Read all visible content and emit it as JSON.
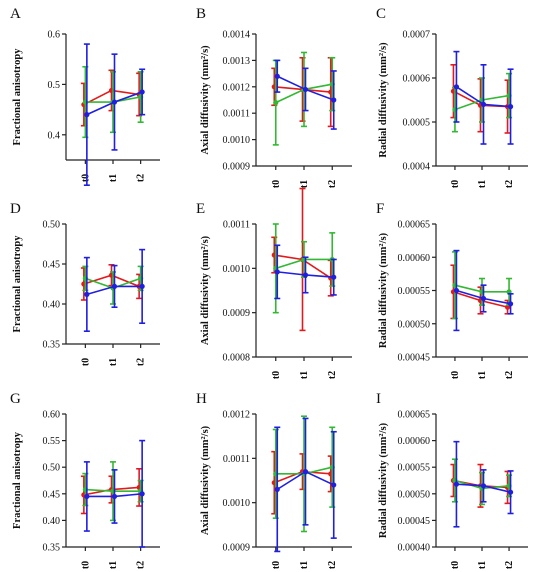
{
  "colors": {
    "red": "#e31a1c",
    "green": "#33b833",
    "blue": "#1f1fe0"
  },
  "chart_data": [
    {
      "panel": "A",
      "type": "line",
      "ylabel": "Fractional anisotropy",
      "categories": [
        "t0",
        "t1",
        "t2"
      ],
      "ylim": [
        0.35,
        0.6
      ],
      "yticks": [
        "0.4",
        "0.5",
        "0.6"
      ],
      "ytick_values": [
        0.4,
        0.5,
        0.6
      ],
      "series": [
        {
          "color": "red",
          "values": [
            0.46,
            0.488,
            0.48
          ],
          "errors": [
            0.042,
            0.04,
            0.042
          ]
        },
        {
          "color": "green",
          "values": [
            0.465,
            0.465,
            0.475
          ],
          "errors": [
            0.07,
            0.06,
            0.05
          ]
        },
        {
          "color": "blue",
          "values": [
            0.44,
            0.465,
            0.485
          ],
          "errors": [
            0.14,
            0.095,
            0.045
          ]
        }
      ]
    },
    {
      "panel": "B",
      "type": "line",
      "ylabel": "Axial diffusivity (mm²/s)",
      "categories": [
        "t0",
        "t1",
        "t2"
      ],
      "ylim": [
        0.0009,
        0.0014
      ],
      "yticks": [
        "0.0009",
        "0.0010",
        "0.0011",
        "0.0012",
        "0.0013",
        "0.0014"
      ],
      "ytick_values": [
        0.0009,
        0.001,
        0.0011,
        0.0012,
        0.0013,
        0.0014
      ],
      "series": [
        {
          "color": "red",
          "values": [
            0.0012,
            0.00119,
            0.00118
          ],
          "errors": [
            7e-05,
            0.00012,
            0.00013
          ]
        },
        {
          "color": "green",
          "values": [
            0.00114,
            0.00119,
            0.00121
          ],
          "errors": [
            0.00016,
            0.00014,
            0.0001
          ]
        },
        {
          "color": "blue",
          "values": [
            0.00124,
            0.00119,
            0.00115
          ],
          "errors": [
            6e-05,
            8e-05,
            0.00011
          ]
        }
      ]
    },
    {
      "panel": "C",
      "type": "line",
      "ylabel": "Radial diffusivity (mm²/s)",
      "categories": [
        "t0",
        "t1",
        "t2"
      ],
      "ylim": [
        0.0004,
        0.0007
      ],
      "yticks": [
        "0.0004",
        "0.0005",
        "0.0006",
        "0.0007"
      ],
      "ytick_values": [
        0.0004,
        0.0005,
        0.0006,
        0.0007
      ],
      "series": [
        {
          "color": "red",
          "values": [
            0.00057,
            0.000538,
            0.000535
          ],
          "errors": [
            6e-05,
            6e-05,
            6e-05
          ]
        },
        {
          "color": "green",
          "values": [
            0.000528,
            0.00055,
            0.00056
          ],
          "errors": [
            5e-05,
            5e-05,
            5e-05
          ]
        },
        {
          "color": "blue",
          "values": [
            0.00058,
            0.00054,
            0.000535
          ],
          "errors": [
            8e-05,
            9e-05,
            8.5e-05
          ]
        }
      ]
    },
    {
      "panel": "D",
      "type": "line",
      "ylabel": "Fractional anisotropy",
      "categories": [
        "t0",
        "t1",
        "t2"
      ],
      "ylim": [
        0.35,
        0.5
      ],
      "yticks": [
        "0.35",
        "0.40",
        "0.45",
        "0.50"
      ],
      "ytick_values": [
        0.35,
        0.4,
        0.45,
        0.5
      ],
      "series": [
        {
          "color": "red",
          "values": [
            0.425,
            0.436,
            0.422
          ],
          "errors": [
            0.02,
            0.013,
            0.015
          ]
        },
        {
          "color": "green",
          "values": [
            0.432,
            0.42,
            0.432
          ],
          "errors": [
            0.015,
            0.02,
            0.015
          ]
        },
        {
          "color": "blue",
          "values": [
            0.412,
            0.422,
            0.422
          ],
          "errors": [
            0.046,
            0.026,
            0.046
          ]
        }
      ]
    },
    {
      "panel": "E",
      "type": "line",
      "ylabel": "Axial diffusivity (mm²/s)",
      "categories": [
        "t0",
        "t1",
        "t2"
      ],
      "ylim": [
        0.0008,
        0.0011
      ],
      "yticks": [
        "0.0008",
        "0.0009",
        "0.0010",
        "0.0011"
      ],
      "ytick_values": [
        0.0008,
        0.0009,
        0.001,
        0.0011
      ],
      "series": [
        {
          "color": "red",
          "values": [
            0.00103,
            0.00102,
            0.000978
          ],
          "errors": [
            4e-05,
            0.00016,
            4e-05
          ]
        },
        {
          "color": "green",
          "values": [
            0.001,
            0.00102,
            0.00102
          ],
          "errors": [
            0.0001,
            4e-05,
            6e-05
          ]
        },
        {
          "color": "blue",
          "values": [
            0.000992,
            0.000985,
            0.00098
          ],
          "errors": [
            6e-05,
            4e-05,
            4e-05
          ]
        }
      ]
    },
    {
      "panel": "F",
      "type": "line",
      "ylabel": "Radial diffusivity (mm²/s)",
      "categories": [
        "t0",
        "t1",
        "t2"
      ],
      "ylim": [
        0.00045,
        0.00065
      ],
      "yticks": [
        "0.00045",
        "0.00050",
        "0.00055",
        "0.00060",
        "0.00065"
      ],
      "ytick_values": [
        0.00045,
        0.0005,
        0.00055,
        0.0006,
        0.00065
      ],
      "series": [
        {
          "color": "red",
          "values": [
            0.000548,
            0.000535,
            0.000525
          ],
          "errors": [
            4e-05,
            2e-05,
            1e-05
          ]
        },
        {
          "color": "green",
          "values": [
            0.000558,
            0.000548,
            0.000548
          ],
          "errors": [
            5e-05,
            2e-05,
            2e-05
          ]
        },
        {
          "color": "blue",
          "values": [
            0.00055,
            0.000538,
            0.00053
          ],
          "errors": [
            6e-05,
            2e-05,
            1.5e-05
          ]
        }
      ]
    },
    {
      "panel": "G",
      "type": "line",
      "ylabel": "Fractional anisotropy",
      "categories": [
        "t0",
        "t1",
        "t2"
      ],
      "ylim": [
        0.35,
        0.6
      ],
      "yticks": [
        "0.35",
        "0.40",
        "0.45",
        "0.50",
        "0.55",
        "0.60"
      ],
      "ytick_values": [
        0.35,
        0.4,
        0.45,
        0.5,
        0.55,
        0.6
      ],
      "series": [
        {
          "color": "red",
          "values": [
            0.448,
            0.458,
            0.462
          ],
          "errors": [
            0.035,
            0.025,
            0.035
          ]
        },
        {
          "color": "green",
          "values": [
            0.458,
            0.455,
            0.455
          ],
          "errors": [
            0.03,
            0.055,
            0.02
          ]
        },
        {
          "color": "blue",
          "values": [
            0.445,
            0.445,
            0.45
          ],
          "errors": [
            0.065,
            0.05,
            0.1
          ]
        }
      ]
    },
    {
      "panel": "H",
      "type": "line",
      "ylabel": "Axial diffusivity (mm²/s)",
      "categories": [
        "t0",
        "t1",
        "t2"
      ],
      "ylim": [
        0.0009,
        0.0012
      ],
      "yticks": [
        "0.0009",
        "0.0010",
        "0.0011",
        "0.0012"
      ],
      "ytick_values": [
        0.0009,
        0.001,
        0.0011,
        0.0012
      ],
      "series": [
        {
          "color": "red",
          "values": [
            0.001045,
            0.00107,
            0.001065
          ],
          "errors": [
            7e-05,
            4e-05,
            4e-05
          ]
        },
        {
          "color": "green",
          "values": [
            0.001065,
            0.001065,
            0.00108
          ],
          "errors": [
            0.0001,
            0.00013,
            9e-05
          ]
        },
        {
          "color": "blue",
          "values": [
            0.00103,
            0.00107,
            0.00104
          ],
          "errors": [
            0.00014,
            0.00012,
            0.00012
          ]
        }
      ]
    },
    {
      "panel": "I",
      "type": "line",
      "ylabel": "Radial diffusivity (mm²/s)",
      "categories": [
        "t0",
        "t1",
        "t2"
      ],
      "ylim": [
        0.0004,
        0.00065
      ],
      "yticks": [
        "0.00040",
        "0.00045",
        "0.00050",
        "0.00055",
        "0.00060",
        "0.00065"
      ],
      "ytick_values": [
        0.0004,
        0.00045,
        0.0005,
        0.00055,
        0.0006,
        0.00065
      ],
      "series": [
        {
          "color": "red",
          "values": [
            0.000525,
            0.000515,
            0.000512
          ],
          "errors": [
            3e-05,
            4e-05,
            3e-05
          ]
        },
        {
          "color": "green",
          "values": [
            0.000525,
            0.00051,
            0.000515
          ],
          "errors": [
            4e-05,
            3e-05,
            2e-05
          ]
        },
        {
          "color": "blue",
          "values": [
            0.000518,
            0.000515,
            0.000503
          ],
          "errors": [
            8e-05,
            3e-05,
            4e-05
          ]
        }
      ]
    }
  ]
}
